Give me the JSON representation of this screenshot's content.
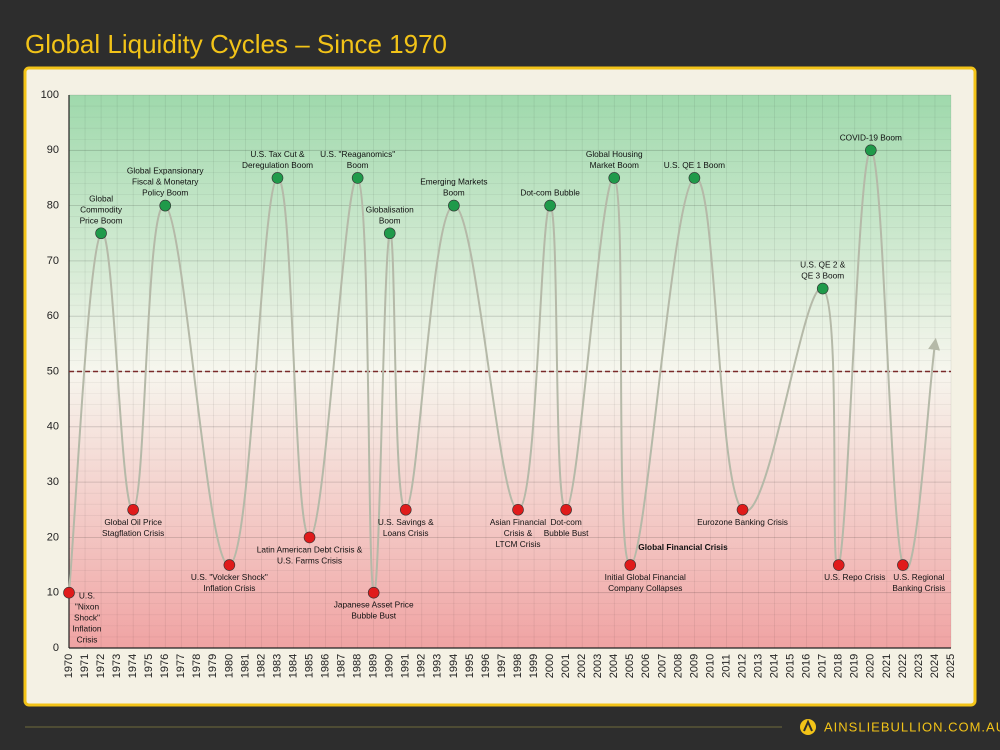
{
  "chart_data": {
    "type": "line",
    "title": "Global Liquidity Cycles – Since 1970",
    "xlim": [
      1970,
      2025
    ],
    "xticks": [
      1970,
      1971,
      1972,
      1973,
      1974,
      1975,
      1976,
      1977,
      1978,
      1979,
      1980,
      1981,
      1982,
      1983,
      1984,
      1985,
      1986,
      1987,
      1988,
      1989,
      1990,
      1991,
      1992,
      1993,
      1994,
      1995,
      1996,
      1997,
      1998,
      1999,
      2000,
      2001,
      2002,
      2003,
      2004,
      2005,
      2006,
      2007,
      2008,
      2009,
      2010,
      2011,
      2012,
      2013,
      2014,
      2015,
      2016,
      2017,
      2018,
      2019,
      2020,
      2021,
      2022,
      2023,
      2024,
      2025
    ],
    "ylim": [
      0,
      100
    ],
    "yticks": [
      0,
      10,
      20,
      30,
      40,
      50,
      60,
      70,
      80,
      90,
      100
    ],
    "reference_line": 50,
    "grid": true,
    "line_color": "#b5b9a8",
    "boom_color": "#1f9a4a",
    "crisis_color": "#e01b1b",
    "x": [
      1970,
      1972,
      1974,
      1976,
      1980,
      1983,
      1985,
      1988,
      1989,
      1990,
      1991,
      1994,
      1998,
      2000,
      2001,
      2004,
      2005,
      2009,
      2012,
      2017,
      2018,
      2020,
      2022,
      2024
    ],
    "values": [
      10,
      75,
      25,
      80,
      15,
      85,
      20,
      85,
      10,
      75,
      25,
      80,
      25,
      80,
      25,
      85,
      15,
      85,
      25,
      65,
      15,
      90,
      15,
      55
    ],
    "labels": [
      "U.S.\n\"Nixon\nShock\"\nInflation\nCrisis",
      "Global\nCommodity\nPrice Boom",
      "Global Oil Price\nStagflation Crisis",
      "Global Expansionary\nFiscal & Monetary\nPolicy Boom",
      "U.S. \"Volcker Shock\"\nInflation Crisis",
      "U.S. Tax Cut &\nDeregulation Boom",
      "Latin American Debt Crisis &\nU.S. Farms Crisis",
      "U.S. \"Reaganomics\"\nBoom",
      "Japanese Asset Price\nBubble Bust",
      "Globalisation\nBoom",
      "U.S. Savings &\nLoans Crisis",
      "Emerging Markets\nBoom",
      "Asian Financial\nCrisis &\nLTCM Crisis",
      "Dot-com Bubble",
      "Dot-com\nBubble Bust",
      "Global Housing\nMarket Boom",
      "Initial Global Financial\nCompany Collapses",
      "U.S. QE 1 Boom",
      "Eurozone Banking Crisis",
      "U.S. QE 2 &\nQE 3 Boom",
      "U.S. Repo Crisis",
      "COVID-19 Boom",
      "U.S. Regional\nBanking Crisis",
      null
    ],
    "annotation": "Global Financial Crisis",
    "footer": "AINSLIEBULLION.COM.AU"
  }
}
